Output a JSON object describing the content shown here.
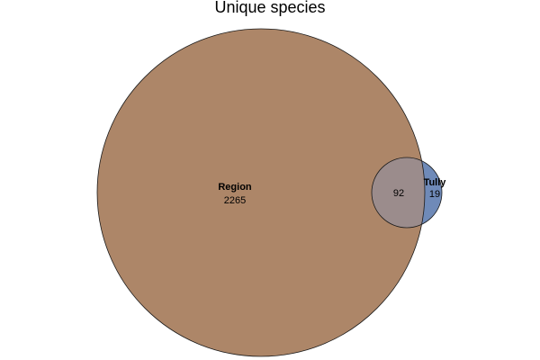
{
  "title": "Unique species",
  "sets": [
    {
      "name": "Region",
      "only_count": "2265",
      "color": "#ad8668"
    },
    {
      "name": "Tully",
      "only_count": "19",
      "color": "#6f8ab8"
    }
  ],
  "intersection": {
    "count": "92",
    "color": "#9b8c8c"
  },
  "outline_color": "#1a1a1a"
}
